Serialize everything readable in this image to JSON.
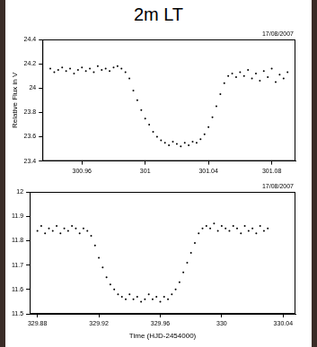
{
  "title": "2m LT",
  "chart_data": [
    {
      "type": "scatter",
      "annotation": "17/08/2007",
      "y_label": "Relative Flux in V",
      "color": "#000000",
      "marker": "point",
      "grid": false,
      "xlim": [
        300.935,
        301.095
      ],
      "xticks": [
        300.96,
        301,
        301.04,
        301.08
      ],
      "ylim": [
        23.4,
        24.4
      ],
      "yticks": [
        23.4,
        23.6,
        23.8,
        24,
        24.2,
        24.4
      ],
      "x": [
        300.94,
        300.9425,
        300.945,
        300.9475,
        300.95,
        300.9525,
        300.955,
        300.9575,
        300.96,
        300.9625,
        300.965,
        300.9675,
        300.97,
        300.9725,
        300.975,
        300.9775,
        300.98,
        300.9825,
        300.985,
        300.9875,
        300.99,
        300.9925,
        300.995,
        300.9975,
        301,
        301.0025,
        301.005,
        301.0075,
        301.01,
        301.0125,
        301.015,
        301.0175,
        301.02,
        301.0225,
        301.025,
        301.0275,
        301.03,
        301.0325,
        301.035,
        301.0375,
        301.04,
        301.0425,
        301.045,
        301.0475,
        301.05,
        301.0525,
        301.055,
        301.0575,
        301.06,
        301.0625,
        301.065,
        301.0675,
        301.07,
        301.0725,
        301.075,
        301.0775,
        301.08,
        301.0825,
        301.085,
        301.0875,
        301.09
      ],
      "values": [
        24.16,
        24.13,
        24.15,
        24.17,
        24.14,
        24.16,
        24.12,
        24.15,
        24.17,
        24.14,
        24.16,
        24.13,
        24.18,
        24.15,
        24.16,
        24.14,
        24.17,
        24.18,
        24.16,
        24.13,
        24.08,
        23.98,
        23.9,
        23.82,
        23.75,
        23.7,
        23.64,
        23.6,
        23.57,
        23.55,
        23.53,
        23.56,
        23.54,
        23.52,
        23.55,
        23.53,
        23.56,
        23.55,
        23.58,
        23.62,
        23.68,
        23.76,
        23.85,
        23.95,
        24.04,
        24.1,
        24.12,
        24.09,
        24.13,
        24.1,
        24.15,
        24.08,
        24.12,
        24.06,
        24.14,
        24.09,
        24.16,
        24.05,
        24.11,
        24.08,
        24.13
      ]
    },
    {
      "type": "scatter",
      "annotation": "17/08/2007",
      "x_label": "Time (HJD-2454000)",
      "color": "#000000",
      "marker": "point",
      "grid": false,
      "xlim": [
        329.875,
        330.048
      ],
      "xticks": [
        329.88,
        329.92,
        329.96,
        330,
        330.04
      ],
      "ylim": [
        11.5,
        12
      ],
      "yticks": [
        11.5,
        11.6,
        11.7,
        11.8,
        11.9,
        12
      ],
      "x": [
        329.88,
        329.8825,
        329.885,
        329.8875,
        329.89,
        329.8925,
        329.895,
        329.8975,
        329.9,
        329.9025,
        329.905,
        329.9075,
        329.91,
        329.9125,
        329.915,
        329.9175,
        329.92,
        329.9225,
        329.925,
        329.9275,
        329.93,
        329.9325,
        329.935,
        329.9375,
        329.94,
        329.9425,
        329.945,
        329.9475,
        329.95,
        329.9525,
        329.955,
        329.9575,
        329.96,
        329.9625,
        329.965,
        329.9675,
        329.97,
        329.9725,
        329.975,
        329.9775,
        329.98,
        329.9825,
        329.985,
        329.9875,
        329.99,
        329.9925,
        329.995,
        329.9975,
        330,
        330.0025,
        330.005,
        330.0075,
        330.01,
        330.0125,
        330.015,
        330.0175,
        330.02,
        330.0225,
        330.025,
        330.0275,
        330.03
      ],
      "values": [
        11.84,
        11.86,
        11.83,
        11.85,
        11.84,
        11.86,
        11.83,
        11.85,
        11.84,
        11.86,
        11.85,
        11.83,
        11.85,
        11.84,
        11.82,
        11.78,
        11.73,
        11.69,
        11.65,
        11.62,
        11.6,
        11.58,
        11.57,
        11.56,
        11.58,
        11.56,
        11.57,
        11.55,
        11.56,
        11.58,
        11.56,
        11.57,
        11.55,
        11.57,
        11.56,
        11.58,
        11.6,
        11.63,
        11.67,
        11.71,
        11.75,
        11.79,
        11.83,
        11.85,
        11.86,
        11.85,
        11.87,
        11.84,
        11.86,
        11.85,
        11.84,
        11.86,
        11.85,
        11.83,
        11.86,
        11.84,
        11.85,
        11.83,
        11.86,
        11.84,
        11.85
      ]
    }
  ]
}
